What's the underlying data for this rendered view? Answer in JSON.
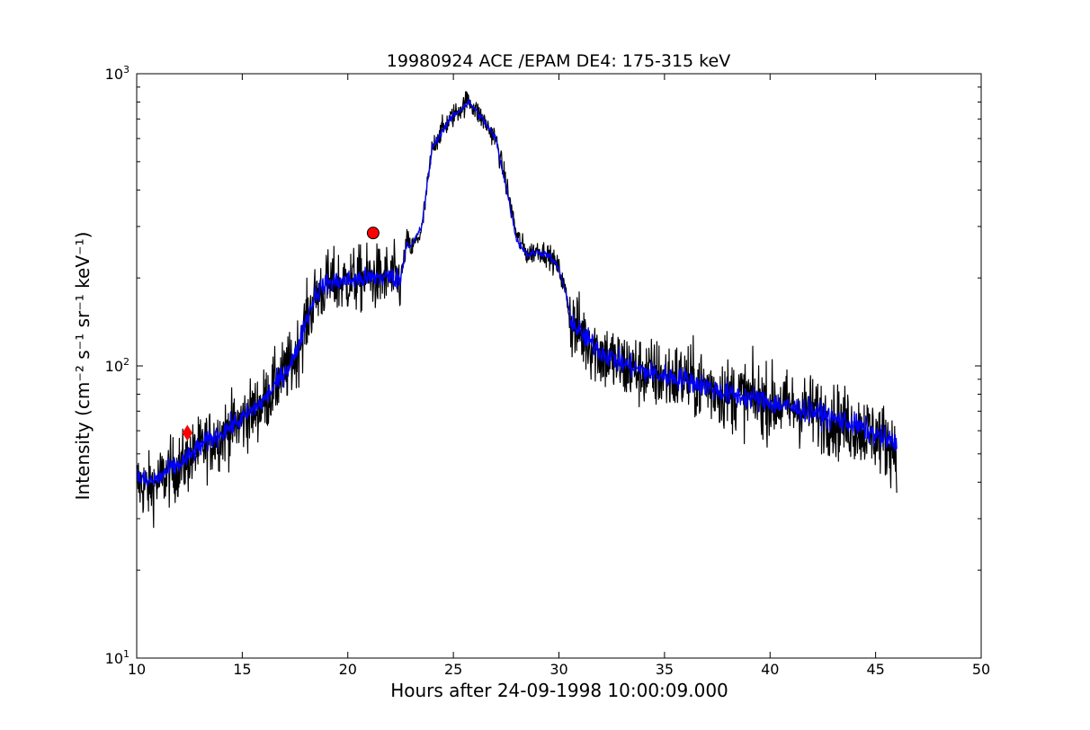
{
  "chart_data": {
    "type": "line",
    "title": "19980924 ACE /EPAM DE4: 175-315 keV",
    "xlabel": "Hours after 24-09-1998 10:00:09.000",
    "ylabel": "Intensity (cm⁻² s⁻¹ sr⁻¹ keV⁻¹)",
    "xlim": [
      10,
      50
    ],
    "ylim": [
      10,
      1000
    ],
    "yscale": "log",
    "grid": false,
    "x_ticks": [
      10,
      15,
      20,
      25,
      30,
      35,
      40,
      45,
      50
    ],
    "x_tick_labels": [
      "10",
      "15",
      "20",
      "25",
      "30",
      "35",
      "40",
      "45",
      "50"
    ],
    "y_ticks": [
      10,
      100,
      1000
    ],
    "y_tick_labels": [
      "10",
      "10",
      "10"
    ],
    "y_tick_exponents": [
      "1",
      "2",
      "3"
    ],
    "series": [
      {
        "color": "#000000",
        "style": "noisy-raw",
        "x": [
          10.0,
          10.5,
          11.0,
          11.5,
          12.0,
          12.5,
          13.0,
          14.0,
          15.0,
          16.0,
          17.0,
          17.5,
          18.0,
          18.5,
          19.0,
          20.0,
          21.0,
          22.0,
          22.5,
          22.8,
          23.0,
          23.5,
          24.0,
          24.5,
          25.0,
          25.5,
          25.7,
          26.0,
          26.5,
          27.0,
          27.5,
          28.0,
          28.5,
          29.0,
          29.5,
          30.0,
          30.3,
          30.6,
          31.0,
          32.0,
          33.0,
          34.0,
          35.0,
          36.0,
          37.0,
          38.0,
          39.0,
          40.0,
          41.0,
          42.0,
          43.0,
          44.0,
          45.0,
          46.0
        ],
        "y": [
          40,
          38,
          40,
          43,
          45,
          48,
          52,
          58,
          65,
          75,
          95,
          105,
          140,
          175,
          190,
          195,
          200,
          200,
          195,
          270,
          250,
          290,
          560,
          650,
          720,
          780,
          820,
          760,
          680,
          600,
          420,
          280,
          240,
          250,
          240,
          215,
          180,
          140,
          130,
          110,
          100,
          95,
          92,
          90,
          85,
          80,
          78,
          75,
          72,
          70,
          65,
          62,
          58,
          52
        ]
      },
      {
        "color": "#0000ff",
        "style": "smoothed",
        "x": [
          10.0,
          10.5,
          11.0,
          11.5,
          12.0,
          12.5,
          13.0,
          14.0,
          15.0,
          16.0,
          17.0,
          17.5,
          18.0,
          18.5,
          19.0,
          20.0,
          21.0,
          22.0,
          22.5,
          22.8,
          23.0,
          23.5,
          24.0,
          24.5,
          25.0,
          25.5,
          25.7,
          26.0,
          26.5,
          27.0,
          27.5,
          28.0,
          28.5,
          29.0,
          29.5,
          30.0,
          30.3,
          30.6,
          31.0,
          32.0,
          33.0,
          34.0,
          35.0,
          36.0,
          37.0,
          38.0,
          39.0,
          40.0,
          41.0,
          42.0,
          43.0,
          44.0,
          45.0,
          46.0
        ],
        "y": [
          42,
          40,
          41,
          44,
          46,
          49,
          53,
          59,
          66,
          76,
          95,
          108,
          142,
          178,
          192,
          196,
          200,
          202,
          198,
          265,
          255,
          300,
          560,
          640,
          720,
          770,
          800,
          760,
          680,
          600,
          410,
          270,
          240,
          245,
          240,
          215,
          180,
          142,
          130,
          112,
          102,
          96,
          92,
          90,
          85,
          80,
          78,
          75,
          72,
          70,
          66,
          63,
          58,
          54
        ]
      }
    ],
    "markers": [
      {
        "x": 12.4,
        "y": 59,
        "shape": "diamond",
        "color": "#ff0000"
      },
      {
        "x": 21.2,
        "y": 285,
        "shape": "circle",
        "color": "#ff0000"
      }
    ]
  }
}
